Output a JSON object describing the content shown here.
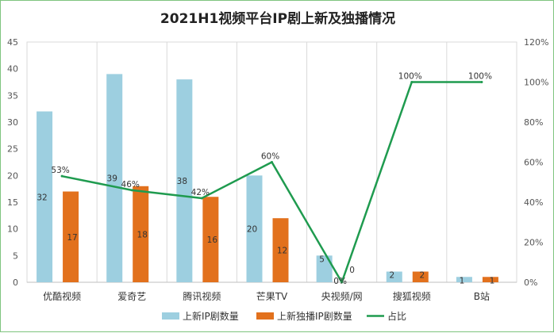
{
  "chart_data": {
    "type": "bar",
    "title": "2021H1视频平台IP剧上新及独播情况",
    "categories": [
      "优酷视频",
      "爱奇艺",
      "腾讯视频",
      "芒果TV",
      "央视频/网",
      "搜狐视频",
      "B站"
    ],
    "series": [
      {
        "name": "上新IP剧数量",
        "type": "bar",
        "axis": "left",
        "color": "#9dcfe0",
        "values": [
          32,
          39,
          38,
          20,
          5,
          2,
          1
        ],
        "labels": [
          "32",
          "39",
          "38",
          "20",
          "5",
          "2",
          "1"
        ]
      },
      {
        "name": "上新独播IP剧数量",
        "type": "bar",
        "axis": "left",
        "color": "#e2711d",
        "values": [
          17,
          18,
          16,
          12,
          0,
          2,
          1
        ],
        "labels": [
          "17",
          "18",
          "16",
          "12",
          "0",
          "2",
          "1"
        ]
      },
      {
        "name": "占比",
        "type": "line",
        "axis": "right",
        "color": "#1f9b4f",
        "values": [
          53,
          46,
          42,
          60,
          0,
          100,
          100
        ],
        "labels": [
          "53%",
          "46%",
          "42%",
          "60%",
          "0%",
          "100%",
          "100%"
        ]
      }
    ],
    "y_left": {
      "min": 0,
      "max": 45,
      "step": 5,
      "ticks": [
        "0",
        "5",
        "10",
        "15",
        "20",
        "25",
        "30",
        "35",
        "40",
        "45"
      ]
    },
    "y_right": {
      "min": 0,
      "max": 120,
      "step": 20,
      "ticks": [
        "0%",
        "20%",
        "40%",
        "60%",
        "80%",
        "100%",
        "120%"
      ]
    },
    "grid": "vertical-only",
    "legend": "bottom"
  }
}
